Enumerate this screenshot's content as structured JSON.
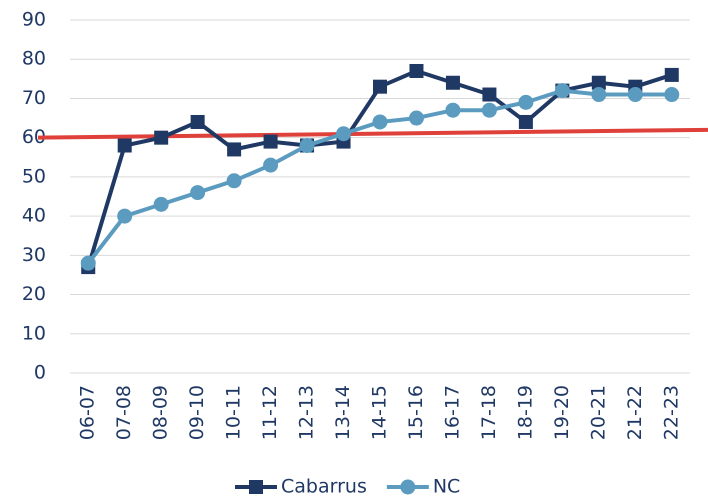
{
  "chart_data": {
    "type": "line",
    "categories": [
      "06-07",
      "07-08",
      "08-09",
      "09-10",
      "10-11",
      "11-12",
      "12-13",
      "13-14",
      "14-15",
      "15-16",
      "16-17",
      "17-18",
      "18-19",
      "19-20",
      "20-21",
      "21-22",
      "22-23"
    ],
    "series": [
      {
        "name": "Cabarrus",
        "color": "#1f3864",
        "marker": "square",
        "values": [
          27,
          58,
          60,
          64,
          57,
          59,
          58,
          59,
          73,
          77,
          74,
          71,
          64,
          72,
          74,
          73,
          76
        ]
      },
      {
        "name": "NC",
        "color": "#5b9bc0",
        "marker": "circle",
        "values": [
          28,
          40,
          43,
          46,
          49,
          53,
          58,
          61,
          64,
          65,
          67,
          67,
          69,
          72,
          71,
          71,
          71
        ]
      }
    ],
    "reference_line": {
      "values": [
        60,
        62
      ],
      "color": "#e0403a"
    },
    "ylim": [
      0,
      90
    ],
    "yticks": [
      0,
      10,
      20,
      30,
      40,
      50,
      60,
      70,
      80,
      90
    ],
    "grid": true,
    "legend": "bottom"
  }
}
